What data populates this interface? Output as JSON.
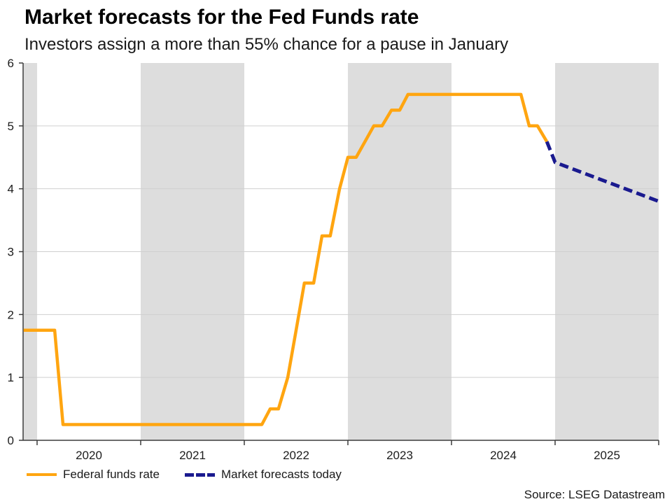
{
  "header": {
    "title": "Market forecasts for the Fed Funds rate",
    "subtitle": "Investors assign a more than 55% chance for a pause in January"
  },
  "footer": {
    "source": "Source: LSEG Datastream"
  },
  "legend": {
    "items": [
      {
        "label": "Federal funds rate",
        "style": "solid",
        "color": "#FFA510"
      },
      {
        "label": "Market forecasts today",
        "style": "dashed",
        "color": "#1A1A8F"
      }
    ]
  },
  "chart_data": {
    "type": "line",
    "title": "Market forecasts for the Fed Funds rate",
    "subtitle": "Investors assign a more than 55% chance for a pause in January",
    "xlabel": "",
    "ylabel": "",
    "grid": "horizontal",
    "legend_position": "bottom-left",
    "x_axis": {
      "range": [
        2019.865,
        2026.0
      ],
      "tick_positions": [
        2020,
        2021,
        2022,
        2023,
        2024,
        2025,
        2026
      ],
      "year_labels": [
        {
          "label": "2020",
          "position": 2020.5
        },
        {
          "label": "2021",
          "position": 2021.5
        },
        {
          "label": "2022",
          "position": 2022.5
        },
        {
          "label": "2023",
          "position": 2023.5
        },
        {
          "label": "2024",
          "position": 2024.5
        },
        {
          "label": "2025",
          "position": 2025.5
        }
      ]
    },
    "y_axis": {
      "range": [
        0,
        6
      ],
      "ticks": [
        0,
        1,
        2,
        3,
        4,
        5,
        6
      ],
      "labels": [
        "0",
        "1",
        "2",
        "3",
        "4",
        "5",
        "6"
      ],
      "gridlines": [
        1,
        2,
        3,
        4,
        5
      ]
    },
    "bands": [
      [
        2019.865,
        2020.0
      ],
      [
        2021.0,
        2022.0
      ],
      [
        2023.0,
        2024.0
      ],
      [
        2025.0,
        2026.0
      ]
    ],
    "colors": {
      "band": "#DDDDDD",
      "grid": "#CFCFCF",
      "axis": "#3C3C3C",
      "tick_text": "#1C1C1C"
    },
    "series": [
      {
        "id": "federal-funds-rate",
        "name": "Federal funds rate",
        "color": "#FFA510",
        "width": 4.5,
        "dash": null,
        "points": [
          [
            2019.87,
            1.75
          ],
          [
            2020.17,
            1.75
          ],
          [
            2020.25,
            0.25
          ],
          [
            2022.17,
            0.25
          ],
          [
            2022.25,
            0.5
          ],
          [
            2022.33,
            0.5
          ],
          [
            2022.42,
            1.0
          ],
          [
            2022.5,
            1.75
          ],
          [
            2022.58,
            2.5
          ],
          [
            2022.67,
            2.5
          ],
          [
            2022.75,
            3.25
          ],
          [
            2022.83,
            3.25
          ],
          [
            2022.92,
            4.0
          ],
          [
            2023.0,
            4.5
          ],
          [
            2023.08,
            4.5
          ],
          [
            2023.25,
            5.0
          ],
          [
            2023.33,
            5.0
          ],
          [
            2023.42,
            5.25
          ],
          [
            2023.5,
            5.25
          ],
          [
            2023.58,
            5.5
          ],
          [
            2024.67,
            5.5
          ],
          [
            2024.75,
            5.0
          ],
          [
            2024.83,
            5.0
          ],
          [
            2024.92,
            4.75
          ]
        ]
      },
      {
        "id": "market-forecasts-today",
        "name": "Market forecasts today",
        "color": "#1A1A8F",
        "width": 5,
        "dash": "13 6.5",
        "points": [
          [
            2024.92,
            4.75
          ],
          [
            2025.0,
            4.42
          ],
          [
            2025.5,
            4.11
          ],
          [
            2026.0,
            3.8
          ]
        ]
      }
    ]
  }
}
